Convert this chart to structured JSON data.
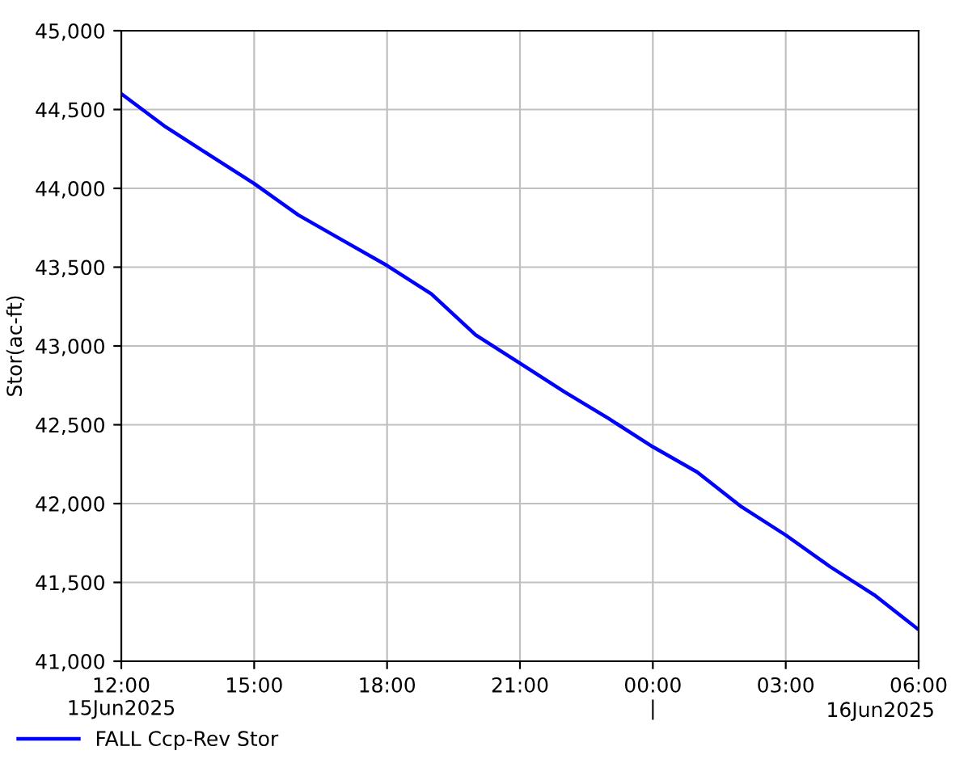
{
  "chart_data": {
    "type": "line",
    "ylabel": "Stor(ac-ft)",
    "x": [
      "2025-06-15T12:00",
      "2025-06-15T13:00",
      "2025-06-15T14:00",
      "2025-06-15T15:00",
      "2025-06-15T16:00",
      "2025-06-15T17:00",
      "2025-06-15T18:00",
      "2025-06-15T19:00",
      "2025-06-15T20:00",
      "2025-06-15T21:00",
      "2025-06-15T22:00",
      "2025-06-15T23:00",
      "2025-06-16T00:00",
      "2025-06-16T01:00",
      "2025-06-16T02:00",
      "2025-06-16T03:00",
      "2025-06-16T04:00",
      "2025-06-16T05:00",
      "2025-06-16T06:00"
    ],
    "series": [
      {
        "name": "FALL Ccp-Rev Stor",
        "color": "#0000ff",
        "values": [
          44600,
          44390,
          44210,
          44030,
          43830,
          43670,
          43510,
          43330,
          43070,
          42890,
          42710,
          42540,
          42360,
          42200,
          41980,
          41800,
          41600,
          41420,
          41200
        ]
      }
    ],
    "xlim": [
      "2025-06-15T12:00",
      "2025-06-16T06:00"
    ],
    "xticks": [
      {
        "value": "2025-06-15T12:00",
        "label": "12:00\n15Jun2025"
      },
      {
        "value": "2025-06-15T15:00",
        "label": "15:00"
      },
      {
        "value": "2025-06-15T18:00",
        "label": "18:00"
      },
      {
        "value": "2025-06-15T21:00",
        "label": "21:00"
      },
      {
        "value": "2025-06-16T00:00",
        "label": "00:00\n|"
      },
      {
        "value": "2025-06-16T03:00",
        "label": "03:00"
      },
      {
        "value": "2025-06-16T06:00",
        "label": "06:00"
      }
    ],
    "ylim": [
      41000,
      45000
    ],
    "yticks": [
      {
        "value": 41000,
        "label": "41,000"
      },
      {
        "value": 41500,
        "label": "41,500"
      },
      {
        "value": 42000,
        "label": "42,000"
      },
      {
        "value": 42500,
        "label": "42,500"
      },
      {
        "value": 43000,
        "label": "43,000"
      },
      {
        "value": 43500,
        "label": "43,500"
      },
      {
        "value": 44000,
        "label": "44,000"
      },
      {
        "value": 44500,
        "label": "44,500"
      },
      {
        "value": 45000,
        "label": "45,000"
      }
    ],
    "annotations": [
      "16Jun2025"
    ],
    "grid": true,
    "legend": "bottom left",
    "line_style": "solid",
    "marker": "none"
  }
}
